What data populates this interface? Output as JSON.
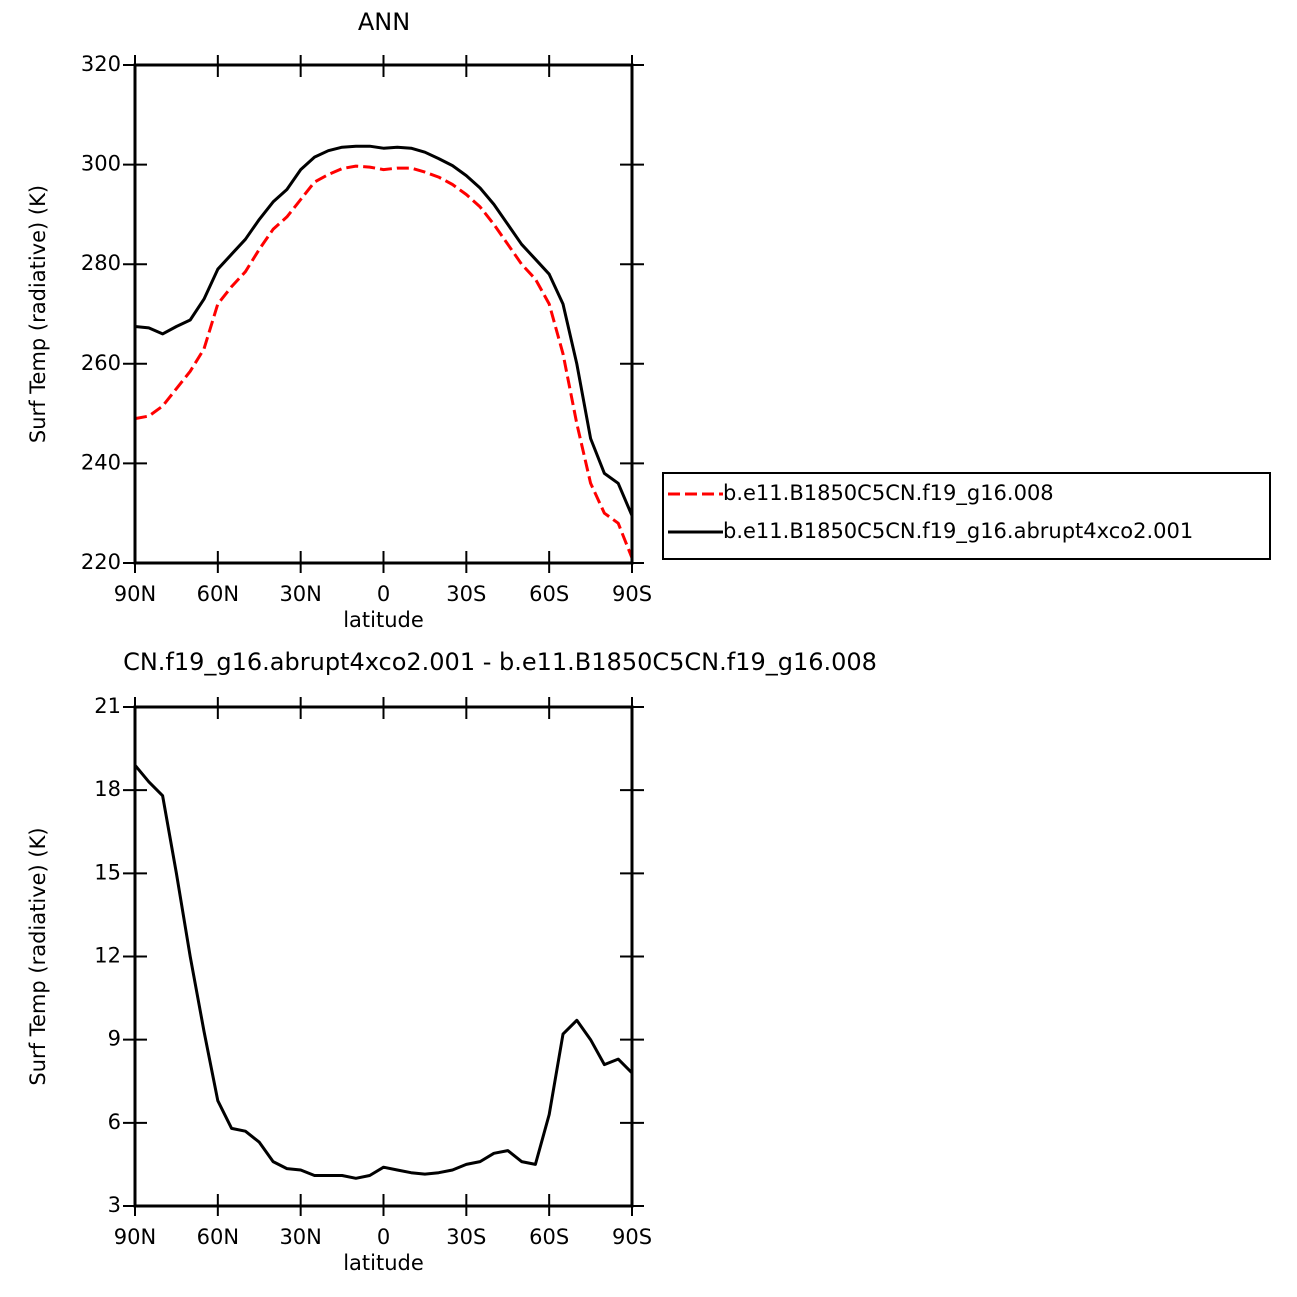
{
  "chart_data": [
    {
      "type": "line",
      "title": "ANN",
      "x_label": "latitude",
      "y_label": "Surf Temp (radiative) (K)",
      "x": [
        90,
        85,
        80,
        75,
        70,
        65,
        60,
        55,
        50,
        45,
        40,
        35,
        30,
        25,
        20,
        15,
        10,
        5,
        0,
        -5,
        -10,
        -15,
        -20,
        -25,
        -30,
        -35,
        -40,
        -45,
        -50,
        -55,
        -60,
        -65,
        -70,
        -75,
        -80,
        -85,
        -90
      ],
      "series": [
        {
          "name": "b.e11.B1850C5CN.f19_g16.008",
          "color": "#ff0000",
          "dashed": true,
          "values": [
            249,
            249.5,
            251.5,
            255,
            258.5,
            263,
            272,
            275.5,
            278.5,
            283,
            287,
            289.5,
            293,
            296.5,
            298,
            299.2,
            299.7,
            299.5,
            299,
            299.3,
            299.3,
            298.5,
            297.5,
            296,
            294,
            291.5,
            288,
            284,
            280,
            277,
            272,
            262,
            248,
            236,
            230,
            228,
            221
          ]
        },
        {
          "name": "b.e11.B1850C5CN.f19_g16.abrupt4xco2.001",
          "color": "#000000",
          "dashed": false,
          "values": [
            267.5,
            267.2,
            266,
            267.5,
            268.8,
            273,
            279,
            282,
            285,
            289,
            292.5,
            295,
            299,
            301.5,
            302.8,
            303.5,
            303.7,
            303.7,
            303.3,
            303.5,
            303.3,
            302.5,
            301.2,
            299.8,
            297.8,
            295.3,
            292,
            288,
            284,
            281,
            278,
            272,
            260,
            245,
            238,
            236,
            229.5
          ]
        }
      ],
      "xlim": [
        90,
        -90
      ],
      "xticks": [
        {
          "value": 90,
          "label": "90N"
        },
        {
          "value": 60,
          "label": "60N"
        },
        {
          "value": 30,
          "label": "30N"
        },
        0,
        {
          "value": -30,
          "label": "30S"
        },
        {
          "value": -60,
          "label": "60S"
        },
        {
          "value": -90,
          "label": "90S"
        }
      ],
      "ylim": [
        220,
        320
      ],
      "yticks": [
        220,
        240,
        260,
        280,
        300,
        320
      ],
      "legend": "right"
    },
    {
      "type": "line",
      "title": "CN.f19_g16.abrupt4xco2.001 - b.e11.B1850C5CN.f19_g16.008",
      "x_label": "latitude",
      "y_label": "Surf Temp (radiative) (K)",
      "x": [
        90,
        85,
        80,
        75,
        70,
        65,
        60,
        55,
        50,
        45,
        40,
        35,
        30,
        25,
        20,
        15,
        10,
        5,
        0,
        -5,
        -10,
        -15,
        -20,
        -25,
        -30,
        -35,
        -40,
        -45,
        -50,
        -55,
        -60,
        -65,
        -70,
        -75,
        -80,
        -85,
        -90
      ],
      "series": [
        {
          "color": "#000000",
          "dashed": false,
          "values": [
            18.9,
            18.3,
            17.8,
            15,
            12,
            9.3,
            6.8,
            5.8,
            5.7,
            5.3,
            4.6,
            4.35,
            4.3,
            4.1,
            4.1,
            4.1,
            4,
            4.1,
            4.4,
            4.3,
            4.2,
            4.15,
            4.2,
            4.3,
            4.5,
            4.6,
            4.9,
            5,
            4.6,
            4.5,
            6.3,
            9.2,
            9.7,
            9,
            8.1,
            8.3,
            7.8
          ]
        }
      ],
      "xlim": [
        90,
        -90
      ],
      "xticks": [
        {
          "value": 90,
          "label": "90N"
        },
        {
          "value": 60,
          "label": "60N"
        },
        {
          "value": 30,
          "label": "30N"
        },
        0,
        {
          "value": -30,
          "label": "30S"
        },
        {
          "value": -60,
          "label": "60S"
        },
        {
          "value": -90,
          "label": "90S"
        }
      ],
      "ylim": [
        3,
        21
      ],
      "yticks": [
        3,
        6,
        9,
        12,
        15,
        18,
        21
      ]
    }
  ]
}
